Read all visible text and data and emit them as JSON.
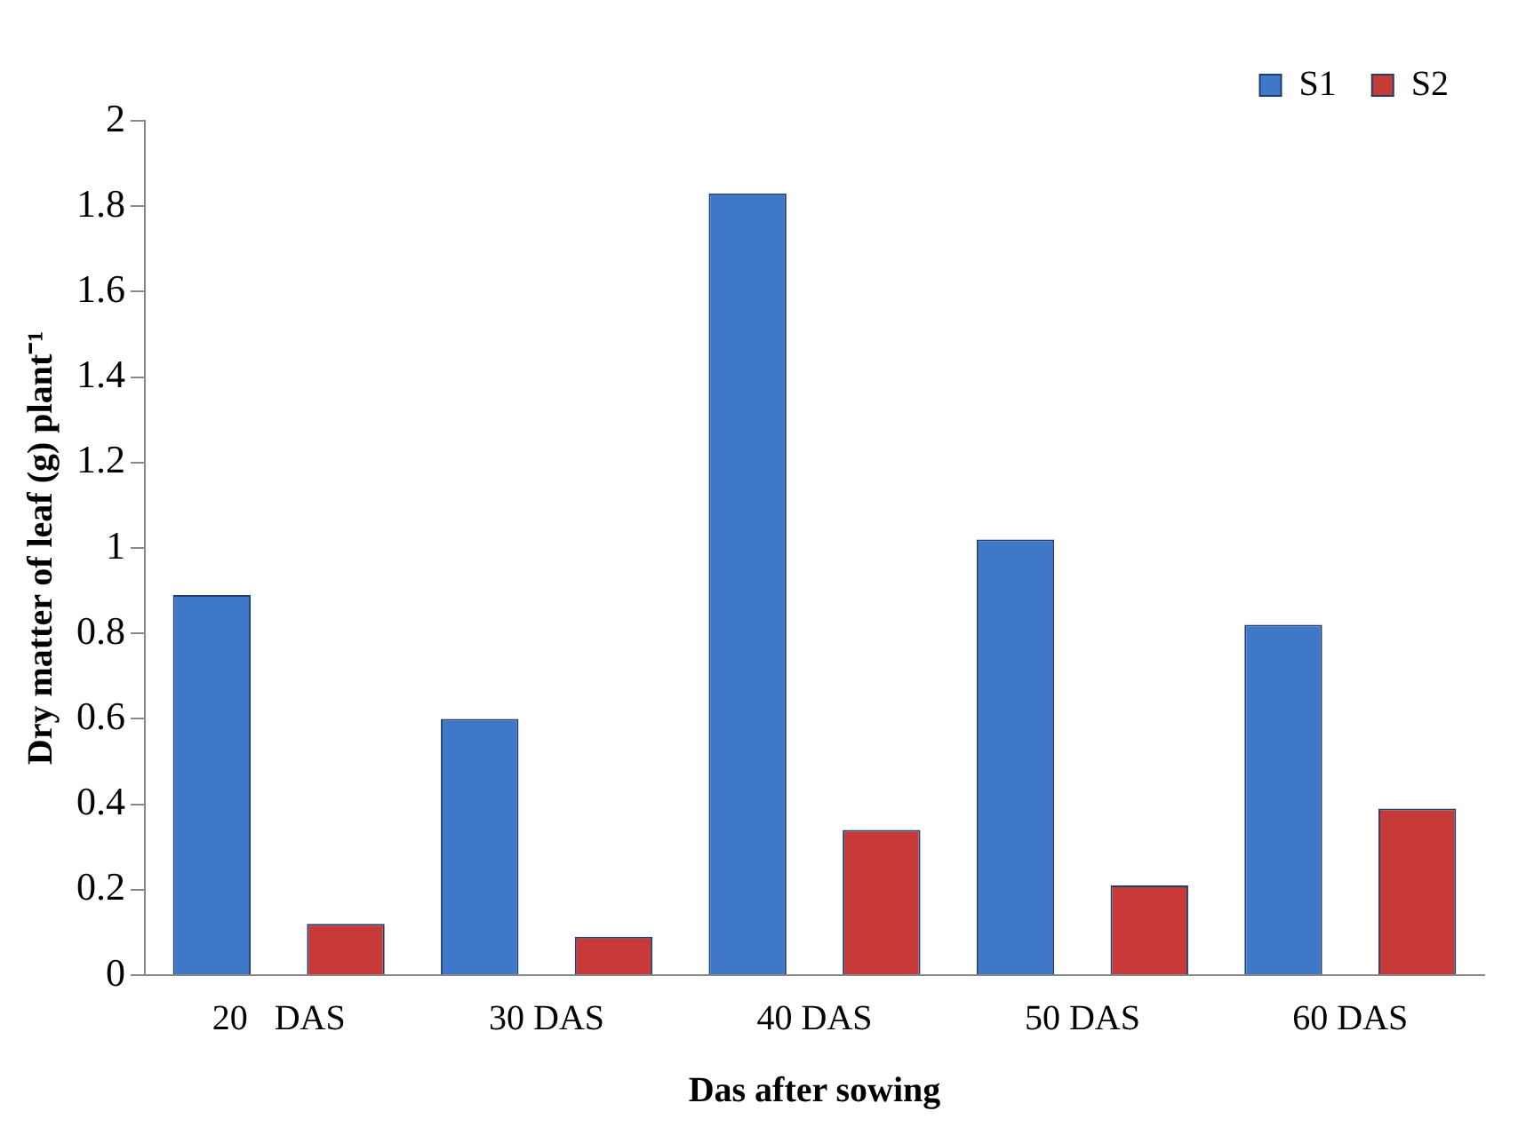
{
  "chart_data": {
    "type": "bar",
    "xlabel": "Das after sowing",
    "ylabel": "Dry matter of leaf (g) plant⁻¹",
    "categories": [
      "20   DAS",
      "30 DAS",
      "40 DAS",
      "50 DAS",
      "60 DAS"
    ],
    "series": [
      {
        "name": "S1",
        "color": "#3f78c8",
        "values": [
          0.89,
          0.6,
          1.83,
          1.02,
          0.82
        ]
      },
      {
        "name": "S2",
        "color": "#c83a38",
        "values": [
          0.12,
          0.09,
          0.34,
          0.21,
          0.39
        ]
      }
    ],
    "ylim": [
      0,
      2
    ],
    "yticks": [
      0,
      0.2,
      0.4,
      0.6,
      0.8,
      1,
      1.2,
      1.4,
      1.6,
      1.8,
      2
    ],
    "grid": false,
    "legend": "top"
  }
}
